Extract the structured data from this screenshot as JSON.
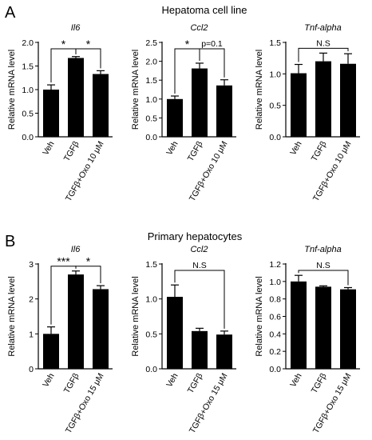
{
  "figure": {
    "panel_a": {
      "letter": "A",
      "title": "Hepatoma cell line"
    },
    "panel_b": {
      "letter": "B",
      "title": "Primary hepatocytes"
    }
  },
  "chart_data": [
    {
      "type": "bar",
      "panel": "A",
      "title": "Il6",
      "ylabel": "Relative mRNA level",
      "categories": [
        "Veh",
        "TGFβ",
        "TGFβ+Oxo 10 μM"
      ],
      "values": [
        1.0,
        1.67,
        1.33
      ],
      "errors": [
        0.1,
        0.03,
        0.07
      ],
      "ylim": [
        0,
        2.0
      ],
      "yticks": [
        "0.0",
        "0.5",
        "1.0",
        "1.5",
        "2.0"
      ],
      "annotations": [
        {
          "from": 0,
          "to": 1,
          "label": "*"
        },
        {
          "from": 1,
          "to": 2,
          "label": "*"
        }
      ]
    },
    {
      "type": "bar",
      "panel": "A",
      "title": "Ccl2",
      "ylabel": "Relative mRNA level",
      "categories": [
        "Veh",
        "TGFβ",
        "TGFβ+Oxo 10 μM"
      ],
      "values": [
        1.0,
        1.81,
        1.36
      ],
      "errors": [
        0.08,
        0.14,
        0.15
      ],
      "ylim": [
        0,
        2.5
      ],
      "yticks": [
        "0.0",
        "0.5",
        "1.0",
        "1.5",
        "2.0",
        "2.5"
      ],
      "annotations": [
        {
          "from": 0,
          "to": 1,
          "label": "*"
        },
        {
          "from": 1,
          "to": 2,
          "label": "p=0.1"
        }
      ]
    },
    {
      "type": "bar",
      "panel": "A",
      "title": "Tnf-alpha",
      "ylabel": "Relative mRNA level",
      "categories": [
        "Veh",
        "TGFβ",
        "TGFβ+Oxo 10 μM"
      ],
      "values": [
        1.01,
        1.2,
        1.16
      ],
      "errors": [
        0.14,
        0.13,
        0.16
      ],
      "ylim": [
        0,
        1.5
      ],
      "yticks": [
        "0.0",
        "0.5",
        "1.0",
        "1.5"
      ],
      "annotations": [
        {
          "from": 0,
          "to": 2,
          "label": "N.S"
        }
      ]
    },
    {
      "type": "bar",
      "panel": "B",
      "title": "Il6",
      "ylabel": "Relative mRNA level",
      "categories": [
        "Veh",
        "TGFβ",
        "TGFβ+Oxo 15 μM"
      ],
      "values": [
        1.0,
        2.7,
        2.28
      ],
      "errors": [
        0.2,
        0.1,
        0.1
      ],
      "ylim": [
        0,
        3
      ],
      "yticks": [
        "0",
        "1",
        "2",
        "3"
      ],
      "annotations": [
        {
          "from": 0,
          "to": 1,
          "label": "***"
        },
        {
          "from": 1,
          "to": 2,
          "label": "*"
        }
      ]
    },
    {
      "type": "bar",
      "panel": "B",
      "title": "Ccl2",
      "ylabel": "Relative mRNA level",
      "categories": [
        "Veh",
        "TGFβ",
        "TGFβ+Oxo 15 μM"
      ],
      "values": [
        1.03,
        0.54,
        0.49
      ],
      "errors": [
        0.17,
        0.04,
        0.05
      ],
      "ylim": [
        0,
        1.5
      ],
      "yticks": [
        "0.0",
        "0.5",
        "1.0",
        "1.5"
      ],
      "annotations": [
        {
          "from": 0,
          "to": 2,
          "label": "N.S"
        }
      ]
    },
    {
      "type": "bar",
      "panel": "B",
      "title": "Tnf-alpha",
      "ylabel": "Relative mRNA level",
      "categories": [
        "Veh",
        "TGFβ",
        "TGFβ+Oxo 15 μM"
      ],
      "values": [
        1.0,
        0.94,
        0.91
      ],
      "errors": [
        0.07,
        0.01,
        0.02
      ],
      "ylim": [
        0,
        1.2
      ],
      "yticks": [
        "0.0",
        "0.2",
        "0.4",
        "0.6",
        "0.8",
        "1.0",
        "1.2"
      ],
      "annotations": [
        {
          "from": 0,
          "to": 2,
          "label": "N.S"
        }
      ]
    }
  ]
}
